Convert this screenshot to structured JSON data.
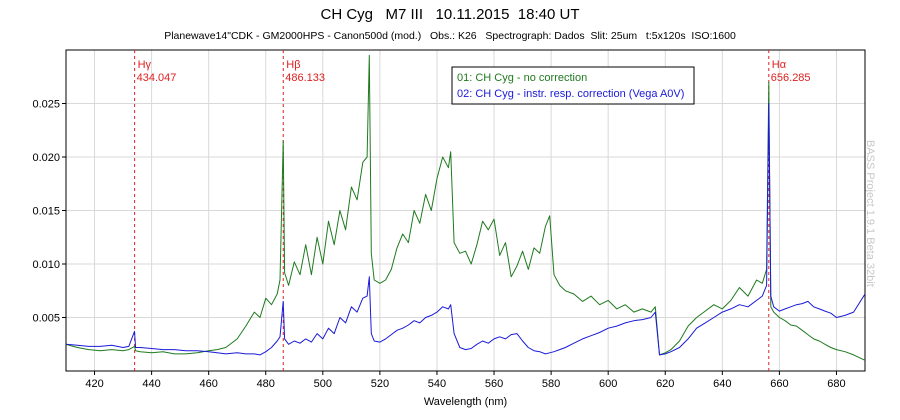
{
  "chart_data": {
    "type": "line",
    "title": "CH Cyg   M7 III   10.11.2015  18:40 UT",
    "subtitle": "Planewave14\"CDK - GM2000HPS - Canon500d (mod.)   Obs.: K26   Spectrograph: Dados  Slit: 25um   t:5x120s  ISO:1600",
    "xlabel": "Wavelength (nm)",
    "ylabel": "",
    "xlim": [
      410,
      690
    ],
    "ylim": [
      0,
      0.03
    ],
    "x_ticks": [
      420,
      440,
      460,
      480,
      500,
      520,
      540,
      560,
      580,
      600,
      620,
      640,
      660,
      680
    ],
    "y_ticks": [
      0.005,
      0.01,
      0.015,
      0.02,
      0.025
    ],
    "y_tick_labels": [
      "0.005",
      "0.010",
      "0.015",
      "0.020",
      "0.025"
    ],
    "grid": true,
    "legend_position": "top-center",
    "series": [
      {
        "name": "01: CH Cyg - no correction",
        "color": "#1f7a1f",
        "x": [
          410,
          414,
          418,
          422,
          426,
          430,
          432,
          434.0,
          434.4,
          436,
          440,
          444,
          448,
          452,
          456,
          460,
          463,
          466,
          470,
          473,
          476,
          478,
          480,
          482,
          484,
          485,
          486.1,
          486.6,
          488,
          490,
          492,
          494,
          496,
          498,
          500,
          502,
          504,
          506,
          508,
          510,
          512,
          514,
          515.5,
          516.3,
          517,
          518,
          520,
          522,
          524,
          526,
          528,
          530,
          532,
          534,
          536,
          538,
          540,
          542,
          544,
          544.8,
          546,
          548,
          550,
          552,
          554,
          556,
          558,
          560,
          562,
          564,
          566,
          568,
          570,
          572,
          574,
          576,
          578,
          579.5,
          581,
          583,
          585,
          588,
          591,
          594,
          597,
          600,
          603,
          606,
          609,
          612,
          615,
          616.5,
          618,
          620,
          622,
          625,
          628,
          631,
          634,
          637,
          640,
          643,
          646,
          649,
          652,
          654,
          655.5,
          656.3,
          657,
          658,
          660,
          662,
          664,
          666,
          668,
          670,
          672,
          674,
          676,
          678,
          680,
          683,
          686,
          690
        ],
        "values": [
          0.0025,
          0.0022,
          0.002,
          0.0019,
          0.002,
          0.0019,
          0.002,
          0.0023,
          0.0019,
          0.0018,
          0.0017,
          0.0018,
          0.0016,
          0.0016,
          0.0017,
          0.0019,
          0.002,
          0.0022,
          0.003,
          0.0042,
          0.0055,
          0.005,
          0.0068,
          0.0062,
          0.0072,
          0.0085,
          0.0215,
          0.0092,
          0.008,
          0.0102,
          0.009,
          0.0118,
          0.009,
          0.0125,
          0.01,
          0.014,
          0.0118,
          0.015,
          0.0132,
          0.0172,
          0.016,
          0.0195,
          0.02,
          0.0295,
          0.011,
          0.0085,
          0.0082,
          0.0085,
          0.0095,
          0.0115,
          0.0128,
          0.012,
          0.015,
          0.0138,
          0.0165,
          0.015,
          0.018,
          0.02,
          0.019,
          0.0205,
          0.012,
          0.011,
          0.0112,
          0.01,
          0.0118,
          0.014,
          0.0132,
          0.0142,
          0.0108,
          0.012,
          0.0088,
          0.0098,
          0.0112,
          0.0095,
          0.0115,
          0.011,
          0.0135,
          0.0145,
          0.009,
          0.008,
          0.0075,
          0.0072,
          0.0065,
          0.007,
          0.0062,
          0.0066,
          0.0058,
          0.0062,
          0.0055,
          0.0058,
          0.0055,
          0.006,
          0.0015,
          0.0017,
          0.002,
          0.0028,
          0.0042,
          0.005,
          0.0056,
          0.0062,
          0.0058,
          0.0066,
          0.0078,
          0.007,
          0.0085,
          0.0082,
          0.0095,
          0.027,
          0.006,
          0.0055,
          0.005,
          0.0047,
          0.0043,
          0.0042,
          0.0038,
          0.0034,
          0.003,
          0.0028,
          0.0025,
          0.0022,
          0.002,
          0.0018,
          0.0015,
          0.001
        ]
      },
      {
        "name": "02: CH Cyg - instr. resp. correction (Vega A0V)",
        "color": "#1a1ad8",
        "x": [
          410,
          414,
          418,
          422,
          426,
          430,
          432,
          434.0,
          434.4,
          436,
          440,
          444,
          448,
          452,
          456,
          460,
          463,
          466,
          470,
          473,
          476,
          478,
          480,
          482,
          484,
          485,
          486.1,
          486.6,
          488,
          490,
          492,
          494,
          496,
          498,
          500,
          502,
          504,
          506,
          508,
          510,
          512,
          514,
          515.5,
          516.3,
          517,
          518,
          520,
          522,
          524,
          526,
          528,
          530,
          532,
          534,
          536,
          538,
          540,
          542,
          544,
          544.8,
          546,
          548,
          550,
          552,
          554,
          556,
          558,
          560,
          562,
          564,
          566,
          568,
          570,
          572,
          574,
          576,
          578,
          579.5,
          581,
          583,
          585,
          588,
          591,
          594,
          597,
          600,
          603,
          606,
          609,
          612,
          615,
          616.5,
          618,
          620,
          622,
          625,
          628,
          631,
          634,
          637,
          640,
          643,
          646,
          649,
          652,
          654,
          655.5,
          656.3,
          657,
          658,
          660,
          662,
          664,
          666,
          668,
          670,
          672,
          674,
          676,
          678,
          680,
          683,
          686,
          690
        ],
        "values": [
          0.0025,
          0.0024,
          0.0023,
          0.0023,
          0.0024,
          0.0022,
          0.0023,
          0.0037,
          0.0022,
          0.0022,
          0.0021,
          0.002,
          0.002,
          0.0019,
          0.0019,
          0.0018,
          0.0017,
          0.0016,
          0.0017,
          0.0016,
          0.0016,
          0.0015,
          0.0018,
          0.0022,
          0.0028,
          0.0032,
          0.0065,
          0.003,
          0.0025,
          0.0028,
          0.0026,
          0.003,
          0.0027,
          0.0035,
          0.003,
          0.004,
          0.0035,
          0.005,
          0.0045,
          0.006,
          0.0055,
          0.0068,
          0.007,
          0.0088,
          0.0035,
          0.0028,
          0.0027,
          0.003,
          0.0034,
          0.0038,
          0.004,
          0.0043,
          0.0047,
          0.0045,
          0.005,
          0.0052,
          0.0055,
          0.006,
          0.0058,
          0.0062,
          0.0035,
          0.0022,
          0.002,
          0.0021,
          0.0025,
          0.0028,
          0.0026,
          0.003,
          0.0032,
          0.003,
          0.0034,
          0.0035,
          0.0028,
          0.0022,
          0.0019,
          0.0018,
          0.0016,
          0.0017,
          0.0018,
          0.002,
          0.0022,
          0.0026,
          0.003,
          0.0033,
          0.0036,
          0.004,
          0.0042,
          0.0045,
          0.0047,
          0.0048,
          0.005,
          0.0055,
          0.0015,
          0.0016,
          0.0018,
          0.0022,
          0.003,
          0.004,
          0.0045,
          0.005,
          0.0055,
          0.0058,
          0.0062,
          0.006,
          0.0066,
          0.007,
          0.008,
          0.025,
          0.007,
          0.006,
          0.0056,
          0.0058,
          0.006,
          0.0062,
          0.0063,
          0.0065,
          0.006,
          0.0058,
          0.0056,
          0.0054,
          0.005,
          0.0052,
          0.0055,
          0.0072
        ]
      }
    ],
    "annotations": [
      {
        "name": "Hγ",
        "value": "434.047",
        "x": 434.047
      },
      {
        "name": "Hβ",
        "value": "486.133",
        "x": 486.133
      },
      {
        "name": "Hα",
        "value": "656.285",
        "x": 656.285
      }
    ],
    "annotation_color": "#e02020",
    "grid_color": "#d9d9d9"
  },
  "watermark": "BASS Project 1.9.1 Beta 32bit"
}
